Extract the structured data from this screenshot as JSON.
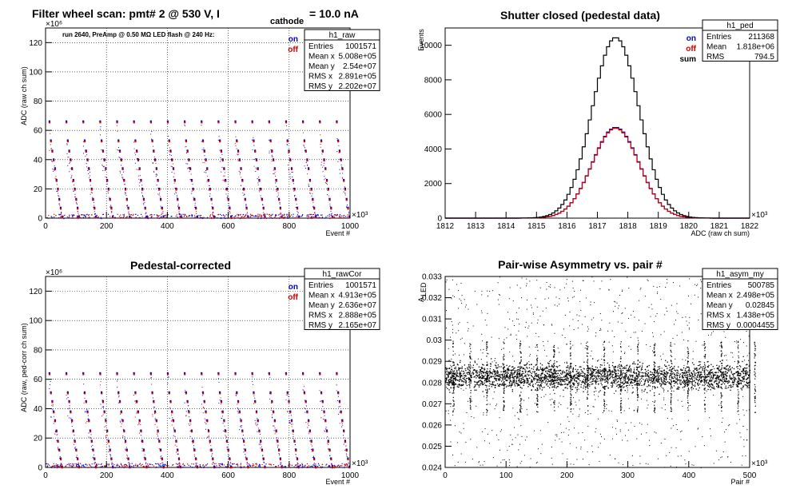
{
  "chart_data": [
    {
      "id": "raw",
      "type": "scatter",
      "title_main": "Filter wheel scan: pmt#   2 @   530 V, I",
      "title_sub": "cathode",
      "title_tail": "= 10.0 nA",
      "annotation": "run 2640, PreAmp @ 0.50 MΩ   LED flash @  240 Hz:",
      "xlabel": "Event #",
      "ylabel": "ADC (raw ch sum)",
      "x_exponent": "×10³",
      "y_exponent": "×10⁶",
      "xlim": [
        0,
        1000
      ],
      "ylim": [
        0,
        130
      ],
      "xticks": [
        "0",
        "200",
        "400",
        "600",
        "800",
        "1000"
      ],
      "yticks": [
        "0",
        "20",
        "40",
        "60",
        "80",
        "100",
        "120"
      ],
      "grid": true,
      "legend": [
        {
          "label": "on",
          "color": "#0000cc"
        },
        {
          "label": "off",
          "color": "#cc0000"
        }
      ],
      "stats_title": "h1_raw",
      "stats": [
        {
          "k": "Entries",
          "v": "1001571"
        },
        {
          "k": "Mean x",
          "v": "5.008e+05"
        },
        {
          "k": "Mean y",
          "v": "2.54e+07"
        },
        {
          "k": "RMS x",
          "v": "2.891e+05"
        },
        {
          "k": "RMS y",
          "v": "2.202e+07"
        }
      ],
      "levels": [
        66,
        53,
        46,
        40,
        34,
        26,
        20,
        13,
        7,
        1
      ],
      "period": 55.5
    },
    {
      "id": "ped",
      "type": "line",
      "title": "Shutter closed (pedestal data)",
      "xlabel": "ADC (raw ch sum)",
      "ylabel": "Events",
      "x_exponent": "×10³",
      "xlim": [
        1812,
        1822
      ],
      "ylim": [
        0,
        11000
      ],
      "xticks": [
        "1812",
        "1813",
        "1814",
        "1815",
        "1816",
        "1817",
        "1818",
        "1819",
        "1820",
        "1821",
        "1822"
      ],
      "yticks": [
        "0",
        "2000",
        "4000",
        "6000",
        "8000",
        "10000"
      ],
      "grid": false,
      "legend": [
        {
          "label": "on",
          "color": "#0000cc"
        },
        {
          "label": "off",
          "color": "#cc0000"
        },
        {
          "label": "sum",
          "color": "#000000"
        }
      ],
      "stats_title": "h1_ped",
      "stats": [
        {
          "k": "Entries",
          "v": "211368"
        },
        {
          "k": "Mean",
          "v": "1.818e+06"
        },
        {
          "k": "RMS",
          "v": "794.5"
        }
      ],
      "series": [
        {
          "name": "on",
          "color": "#0000cc",
          "mean": 1817.6,
          "sigma": 0.77,
          "peak": 5250
        },
        {
          "name": "off",
          "color": "#cc0000",
          "mean": 1817.6,
          "sigma": 0.77,
          "peak": 5200
        },
        {
          "name": "sum",
          "color": "#000000",
          "mean": 1817.6,
          "sigma": 0.77,
          "peak": 10450
        }
      ]
    },
    {
      "id": "rawCor",
      "type": "scatter",
      "title": "Pedestal-corrected",
      "xlabel": "Event #",
      "ylabel": "ADC (raw, ped-corr ch sum)",
      "x_exponent": "×10³",
      "y_exponent": "×10⁶",
      "xlim": [
        0,
        1000
      ],
      "ylim": [
        0,
        130
      ],
      "xticks": [
        "0",
        "200",
        "400",
        "600",
        "800",
        "1000"
      ],
      "yticks": [
        "0",
        "20",
        "40",
        "60",
        "80",
        "100",
        "120"
      ],
      "grid": true,
      "legend": [
        {
          "label": "on",
          "color": "#0000cc"
        },
        {
          "label": "off",
          "color": "#cc0000"
        }
      ],
      "stats_title": "h1_rawCor",
      "stats": [
        {
          "k": "Entries",
          "v": "1001571"
        },
        {
          "k": "Mean x",
          "v": "4.913e+05"
        },
        {
          "k": "Mean y",
          "v": "2.636e+07"
        },
        {
          "k": "RMS x",
          "v": "2.888e+05"
        },
        {
          "k": "RMS y",
          "v": "2.165e+07"
        }
      ],
      "levels": [
        64,
        51,
        45,
        38,
        32,
        25,
        18,
        12,
        6,
        0.5
      ],
      "period": 55.5
    },
    {
      "id": "asym",
      "type": "scatter",
      "title": "Pair-wise Asymmetry vs. pair #",
      "xlabel": "Pair #",
      "ylabel": "A",
      "ylabel_sub": "LED",
      "x_exponent": "×10³",
      "xlim": [
        0,
        500
      ],
      "ylim": [
        0.024,
        0.033
      ],
      "xticks": [
        "0",
        "100",
        "200",
        "300",
        "400",
        "500"
      ],
      "yticks": [
        "0.024",
        "0.025",
        "0.026",
        "0.027",
        "0.028",
        "0.029",
        "0.03",
        "0.031",
        "0.032",
        "0.033"
      ],
      "grid": false,
      "stats_title": "h1_asym_my",
      "stats": [
        {
          "k": "Entries",
          "v": "500785"
        },
        {
          "k": "Mean x",
          "v": "2.498e+05"
        },
        {
          "k": "Mean y",
          "v": "0.02845"
        },
        {
          "k": "RMS x",
          "v": "1.438e+05"
        },
        {
          "k": "RMS y",
          "v": "0.0004455"
        }
      ],
      "band_center": 0.0283,
      "band_halfwidth": 0.00045,
      "spike_period": 27.5
    }
  ]
}
